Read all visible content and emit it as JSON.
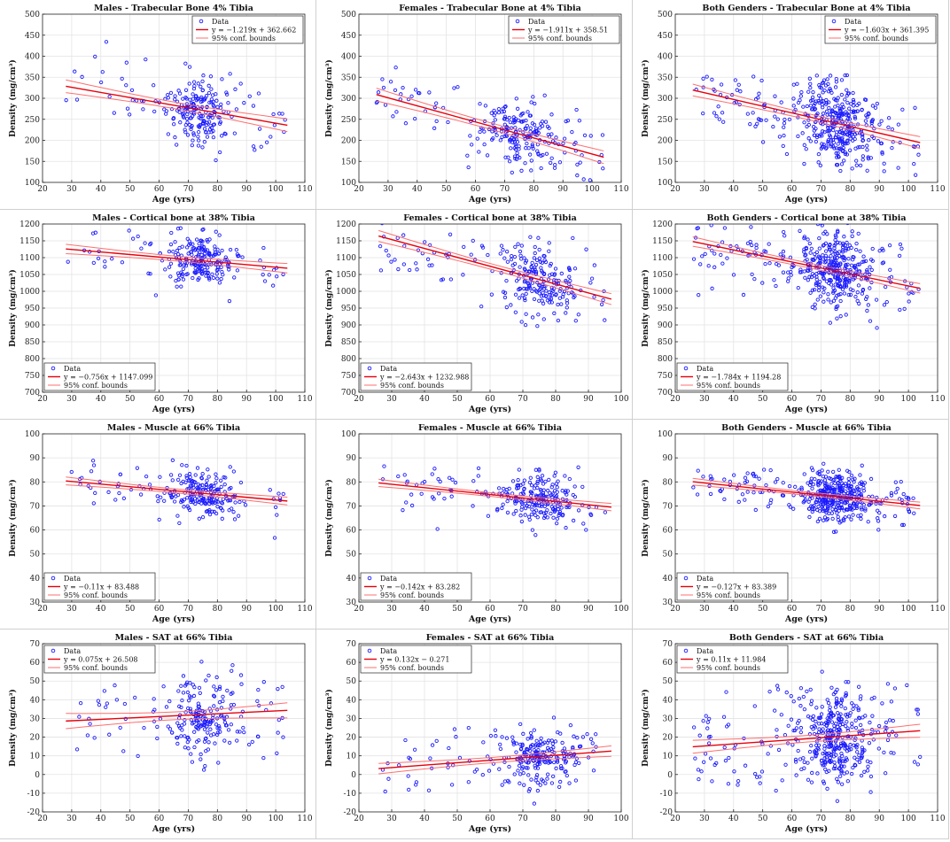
{
  "figure": {
    "legend_data_label": "Data",
    "legend_bounds_label": "95% conf. bounds",
    "xlabel": "Age (yrs)",
    "ylabel": "Density (mg/cm³)",
    "colors": {
      "points": "#1a1aff",
      "fit": "#e8000b",
      "bounds": "#ff6f6f",
      "grid": "#e3e3e3"
    }
  },
  "chart_data": [
    {
      "type": "scatter",
      "title": "Males - Trabecular Bone 4% Tibia",
      "xlim": [
        20,
        110
      ],
      "ylim": [
        100,
        500
      ],
      "xticks": [
        20,
        30,
        40,
        50,
        60,
        70,
        80,
        90,
        100,
        110
      ],
      "yticks": [
        100,
        150,
        200,
        250,
        300,
        350,
        400,
        450,
        500
      ],
      "legend_position": "top-right",
      "fit_label": "y = −1.219x + 362.662",
      "slope": -1.219,
      "intercept": 362.662,
      "ci": 13,
      "fit_x": [
        28,
        104
      ],
      "age_range": [
        27,
        104
      ],
      "spread": 45,
      "n": 230,
      "clusters": [
        [
          74,
          6,
          0.7
        ]
      ],
      "seed": 11
    },
    {
      "type": "scatter",
      "title": "Females - Trabecular Bone at 4% Tibia",
      "xlim": [
        20,
        110
      ],
      "ylim": [
        100,
        500
      ],
      "xticks": [
        20,
        30,
        40,
        50,
        60,
        70,
        80,
        90,
        100,
        110
      ],
      "yticks": [
        100,
        150,
        200,
        250,
        300,
        350,
        400,
        450,
        500
      ],
      "legend_position": "top-right",
      "fit_label": "y = −1.911x + 358.51",
      "slope": -1.911,
      "intercept": 358.51,
      "ci": 13,
      "fit_x": [
        26,
        104
      ],
      "age_range": [
        26,
        104
      ],
      "spread": 38,
      "n": 240,
      "clusters": [
        [
          76,
          7,
          0.7
        ]
      ],
      "seed": 23
    },
    {
      "type": "scatter",
      "title": "Both Genders - Trabecular Bone at 4% Tibia",
      "xlim": [
        20,
        110
      ],
      "ylim": [
        100,
        500
      ],
      "xticks": [
        20,
        30,
        40,
        50,
        60,
        70,
        80,
        90,
        100,
        110
      ],
      "yticks": [
        100,
        150,
        200,
        250,
        300,
        350,
        400,
        450,
        500
      ],
      "legend_position": "top-right",
      "fit_label": "y = −1.603x + 361.395",
      "slope": -1.603,
      "intercept": 361.395,
      "ci": 12,
      "fit_x": [
        26,
        104
      ],
      "age_range": [
        26,
        104
      ],
      "spread": 48,
      "n": 420,
      "clusters": [
        [
          75,
          6,
          0.7
        ]
      ],
      "seed": 37
    },
    {
      "type": "scatter",
      "title": "Males - Cortical bone at 38% Tibia",
      "xlim": [
        20,
        110
      ],
      "ylim": [
        700,
        1200
      ],
      "xticks": [
        20,
        30,
        40,
        50,
        60,
        70,
        80,
        90,
        100,
        110
      ],
      "yticks": [
        700,
        750,
        800,
        850,
        900,
        950,
        1000,
        1050,
        1100,
        1150,
        1200
      ],
      "legend_position": "bottom-left",
      "fit_label": "y = −0.756x + 1147.099",
      "slope": -0.756,
      "intercept": 1147.099,
      "ci": 12,
      "fit_x": [
        28,
        104
      ],
      "age_range": [
        28,
        104
      ],
      "spread": 35,
      "n": 230,
      "clusters": [
        [
          74,
          6,
          0.7
        ]
      ],
      "seed": 41
    },
    {
      "type": "scatter",
      "title": "Females - Cortical bone at 38% Tibia",
      "xlim": [
        20,
        100
      ],
      "ylim": [
        700,
        1200
      ],
      "xticks": [
        20,
        30,
        40,
        50,
        60,
        70,
        80,
        90,
        100
      ],
      "yticks": [
        700,
        750,
        800,
        850,
        900,
        950,
        1000,
        1050,
        1100,
        1150,
        1200
      ],
      "legend_position": "bottom-left",
      "fit_label": "y = −2.643x + 1232.988",
      "slope": -2.643,
      "intercept": 1232.988,
      "ci": 14,
      "fit_x": [
        26,
        97
      ],
      "age_range": [
        26,
        97
      ],
      "spread": 55,
      "n": 250,
      "clusters": [
        [
          75,
          6,
          0.7
        ]
      ],
      "seed": 53
    },
    {
      "type": "scatter",
      "title": "Both Genders - Cortical bone at 38% Tibia",
      "xlim": [
        20,
        110
      ],
      "ylim": [
        700,
        1200
      ],
      "xticks": [
        20,
        30,
        40,
        50,
        60,
        70,
        80,
        90,
        100,
        110
      ],
      "yticks": [
        700,
        750,
        800,
        850,
        900,
        950,
        1000,
        1050,
        1100,
        1150,
        1200
      ],
      "legend_position": "bottom-left",
      "fit_label": "y = −1.784x + 1194.28",
      "slope": -1.784,
      "intercept": 1194.28,
      "ci": 12,
      "fit_x": [
        26,
        104
      ],
      "age_range": [
        26,
        104
      ],
      "spread": 55,
      "n": 430,
      "clusters": [
        [
          75,
          6,
          0.7
        ]
      ],
      "seed": 67
    },
    {
      "type": "scatter",
      "title": "Males - Muscle at 66% Tibia",
      "xlim": [
        20,
        110
      ],
      "ylim": [
        30,
        100
      ],
      "xticks": [
        20,
        30,
        40,
        50,
        60,
        70,
        80,
        90,
        100,
        110
      ],
      "yticks": [
        30,
        40,
        50,
        60,
        70,
        80,
        90,
        100
      ],
      "legend_position": "bottom-left",
      "fit_label": "y = −0.11x + 83.488",
      "slope": -0.11,
      "intercept": 83.488,
      "ci": 1.4,
      "fit_x": [
        28,
        104
      ],
      "age_range": [
        28,
        104
      ],
      "spread": 5,
      "n": 230,
      "clusters": [
        [
          75,
          6,
          0.7
        ]
      ],
      "seed": 71
    },
    {
      "type": "scatter",
      "title": "Females - Muscle at 66% Tibia",
      "xlim": [
        20,
        100
      ],
      "ylim": [
        30,
        100
      ],
      "xticks": [
        20,
        30,
        40,
        50,
        60,
        70,
        80,
        90,
        100
      ],
      "yticks": [
        30,
        40,
        50,
        60,
        70,
        80,
        90,
        100
      ],
      "legend_position": "bottom-left",
      "fit_label": "y = −0.142x + 83.282",
      "slope": -0.142,
      "intercept": 83.282,
      "ci": 1.3,
      "fit_x": [
        26,
        97
      ],
      "age_range": [
        26,
        97
      ],
      "spread": 5,
      "n": 250,
      "clusters": [
        [
          75,
          6,
          0.7
        ]
      ],
      "seed": 83
    },
    {
      "type": "scatter",
      "title": "Both Genders - Muscle at 66% Tibia",
      "xlim": [
        20,
        110
      ],
      "ylim": [
        30,
        100
      ],
      "xticks": [
        20,
        30,
        40,
        50,
        60,
        70,
        80,
        90,
        100,
        110
      ],
      "yticks": [
        30,
        40,
        50,
        60,
        70,
        80,
        90,
        100
      ],
      "legend_position": "bottom-left",
      "fit_label": "y = −0.127x + 83.389",
      "slope": -0.127,
      "intercept": 83.389,
      "ci": 1.2,
      "fit_x": [
        26,
        104
      ],
      "age_range": [
        26,
        104
      ],
      "spread": 5,
      "n": 430,
      "clusters": [
        [
          75,
          6,
          0.7
        ]
      ],
      "seed": 97
    },
    {
      "type": "scatter",
      "title": "Males - SAT at 66% Tibia",
      "xlim": [
        20,
        110
      ],
      "ylim": [
        -20,
        70
      ],
      "xticks": [
        20,
        30,
        40,
        50,
        60,
        70,
        80,
        90,
        100,
        110
      ],
      "yticks": [
        -20,
        -10,
        0,
        10,
        20,
        30,
        40,
        50,
        60,
        70
      ],
      "legend_position": "top-left",
      "fit_label": "y = 0.075x + 26.508",
      "slope": 0.075,
      "intercept": 26.508,
      "ci": 3.5,
      "fit_x": [
        28,
        104
      ],
      "age_range": [
        28,
        104
      ],
      "spread": 11,
      "n": 230,
      "clusters": [
        [
          75,
          6,
          0.7
        ]
      ],
      "seed": 101
    },
    {
      "type": "scatter",
      "title": "Females - SAT at 66% Tibia",
      "xlim": [
        20,
        100
      ],
      "ylim": [
        -20,
        70
      ],
      "xticks": [
        20,
        30,
        40,
        50,
        60,
        70,
        80,
        90,
        100
      ],
      "yticks": [
        -20,
        -10,
        0,
        10,
        20,
        30,
        40,
        50,
        60,
        70
      ],
      "legend_position": "top-left",
      "fit_label": "y = 0.132x − 0.271",
      "slope": 0.132,
      "intercept": -0.271,
      "ci": 2.4,
      "fit_x": [
        26,
        97
      ],
      "age_range": [
        26,
        97
      ],
      "spread": 8,
      "n": 250,
      "clusters": [
        [
          75,
          6,
          0.7
        ]
      ],
      "seed": 113
    },
    {
      "type": "scatter",
      "title": "Both Genders - SAT at 66% Tibia",
      "xlim": [
        20,
        110
      ],
      "ylim": [
        -20,
        70
      ],
      "xticks": [
        20,
        30,
        40,
        50,
        60,
        70,
        80,
        90,
        100,
        110
      ],
      "yticks": [
        -20,
        -10,
        0,
        10,
        20,
        30,
        40,
        50,
        60,
        70
      ],
      "legend_position": "top-left",
      "fit_label": "y = 0.11x + 11.984",
      "slope": 0.11,
      "intercept": 11.984,
      "ci": 3,
      "fit_x": [
        26,
        104
      ],
      "age_range": [
        26,
        104
      ],
      "spread": 13,
      "n": 430,
      "clusters": [
        [
          75,
          6,
          0.7
        ]
      ],
      "seed": 127
    }
  ]
}
